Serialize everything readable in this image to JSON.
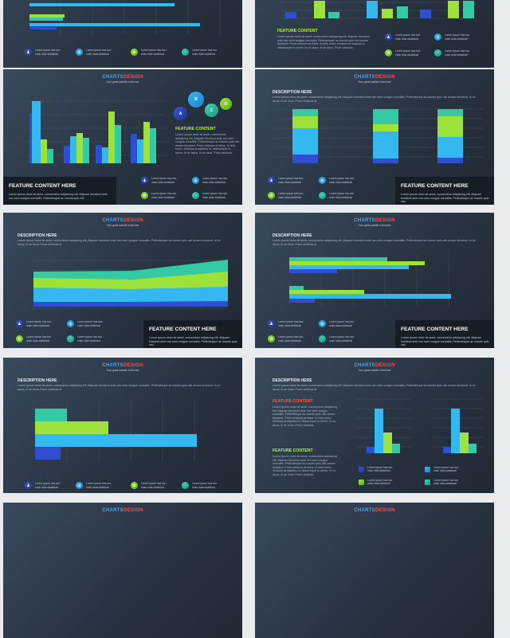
{
  "slide_title": {
    "part1": "CHARTS",
    "part2": "DESIGN",
    "subtitle": "Your great subtitle in this line"
  },
  "description": {
    "heading": "DESCRIPTION HERE",
    "text": "Lorem ipsum dolor sit amet, consectetur adipiscing elit. Aliquam tincidunt ante nec sem congue convallis. Pellentesque ac mauris quis nisl ornare tincidunt. In ex lacus, in ac risus. Proin vehicula at"
  },
  "feature": {
    "heading": "FEATURE CONTENT",
    "heading_here": "FEATURE CONTENT HERE",
    "text": "Lorem ipsum dolor sit amet, consectetur adipiscing elit. Aliquam tincidunt ante nec sem congue convallis. Pellentesque ac mauris quis nisl ornare tincidunt. Proin vehicula at tellus. In felis tortor, vehicula at dapibus in, ullamcorper in lorem. In ex lacus, in ac risus. Proin vehicula.",
    "panel_text": "Lorem ipsum dolor sit amet, consectetur adipiscing elit. Aliquam tincidunt ante nec sem congue convallis. Pellentesque ac mauris quis nisl."
  },
  "icon_item_text": "Lorem ipsum has two main data statistical",
  "bubble_labels": [
    "A",
    "B",
    "C",
    "D"
  ],
  "colors": {
    "blue": "#2f4fd0",
    "cyan": "#35b8f0",
    "green": "#9de23a",
    "teal": "#35c9a4"
  }
}
